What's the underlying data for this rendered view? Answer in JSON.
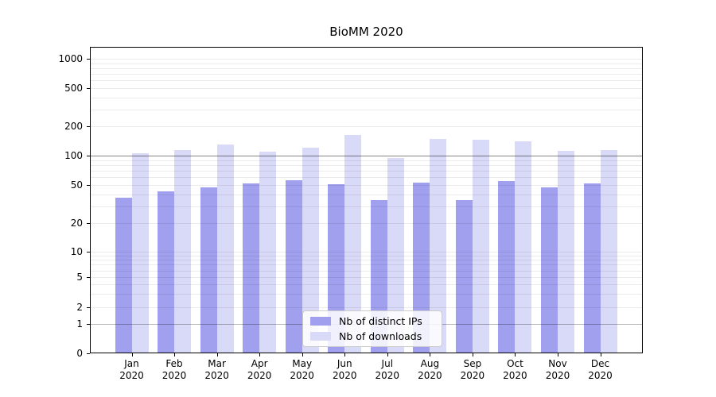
{
  "title": "BioMM 2020",
  "chart_data": {
    "type": "bar",
    "title": "BioMM 2020",
    "categories": [
      "Jan",
      "Feb",
      "Mar",
      "Apr",
      "May",
      "Jun",
      "Jul",
      "Aug",
      "Sep",
      "Oct",
      "Nov",
      "Dec"
    ],
    "year_label": "2020",
    "series": [
      {
        "name": "Nb of distinct IPs",
        "color": "#a0a0ee",
        "values": [
          37,
          43,
          47,
          52,
          56,
          51,
          35,
          53,
          35,
          55,
          47,
          52
        ]
      },
      {
        "name": "Nb of downloads",
        "color": "#d9d9f8",
        "values": [
          105,
          113,
          131,
          110,
          121,
          163,
          94,
          148,
          145,
          139,
          112,
          115
        ]
      }
    ],
    "y_ticks": [
      0,
      1,
      2,
      5,
      10,
      20,
      50,
      100,
      200,
      500,
      1000
    ],
    "yscale": "log-like with compressed 0-1 segment",
    "ylim": [
      0,
      1300
    ],
    "grid": true,
    "grid_minor_values": [
      3,
      4,
      6,
      7,
      8,
      9,
      30,
      40,
      60,
      70,
      80,
      90,
      300,
      400,
      600,
      700,
      800,
      900
    ],
    "grid_emphasis_values": [
      1,
      100
    ],
    "legend_position": "lower center"
  },
  "legend": {
    "items": [
      {
        "label": "Nb of distinct IPs",
        "color": "#a0a0ee"
      },
      {
        "label": "Nb of downloads",
        "color": "#d9d9f8"
      }
    ]
  },
  "colors": {
    "bar_dark": "#a0a0ee",
    "bar_light": "#d9d9f8",
    "spine": "#000000",
    "background": "#ffffff"
  }
}
